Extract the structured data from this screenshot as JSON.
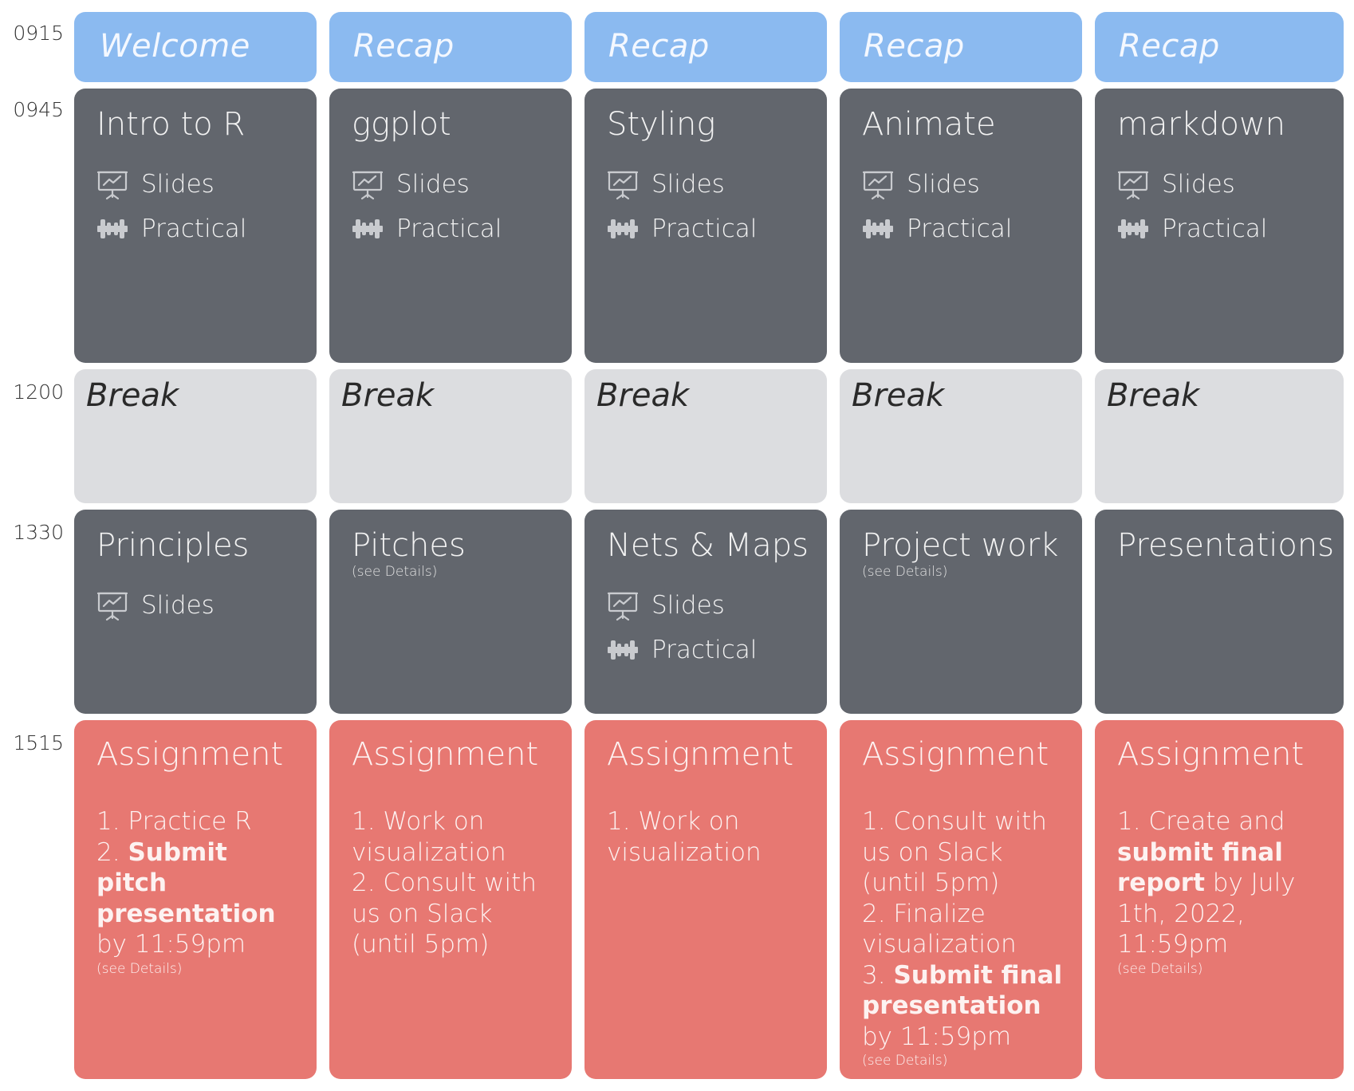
{
  "times": [
    "0915",
    "0945",
    "1200",
    "1330",
    "1515"
  ],
  "colors": {
    "recap": "#8bbaf0",
    "session": "#62666d",
    "break": "#dcdde0",
    "assignment": "#e77872"
  },
  "links": {
    "slides": "Slides",
    "practical": "Practical"
  },
  "days": [
    {
      "recap": "Welcome",
      "morning": {
        "title": "Intro to R"
      },
      "break": "Break",
      "afternoon": {
        "title": "Principles",
        "details": ""
      },
      "assignment": {
        "title": "Assignment",
        "line1": "1. Practice R",
        "line2_pre": "2. ",
        "line2_bold": "Submit pitch presentation",
        "line2_post": " by 11:59pm",
        "details": "(see Details)"
      }
    },
    {
      "recap": "Recap",
      "morning": {
        "title": "ggplot"
      },
      "break": "Break",
      "afternoon": {
        "title": "Pitches",
        "details": "(see Details)"
      },
      "assignment": {
        "title": "Assignment",
        "line1": "1. Work on visualization",
        "line2": "2. Consult with us on Slack (until 5pm)"
      }
    },
    {
      "recap": "Recap",
      "morning": {
        "title": "Styling"
      },
      "break": "Break",
      "afternoon": {
        "title": "Nets & Maps",
        "details": ""
      },
      "assignment": {
        "title": "Assignment",
        "line1": "1. Work on visualization"
      }
    },
    {
      "recap": "Recap",
      "morning": {
        "title": "Animate"
      },
      "break": "Break",
      "afternoon": {
        "title": "Project work",
        "details": "(see Details)"
      },
      "assignment": {
        "title": "Assignment",
        "line1": "1. Consult with us on Slack (until 5pm)",
        "line2": "2. Finalize visualization",
        "line3_pre": "3. ",
        "line3_bold": "Submit final presentation",
        "line3_post": " by 11:59pm",
        "details": "(see Details)"
      }
    },
    {
      "recap": "Recap",
      "morning": {
        "title": "markdown"
      },
      "break": "Break",
      "afternoon": {
        "title": "Presentations",
        "details": ""
      },
      "assignment": {
        "title": "Assignment",
        "line1_pre": "1. Create and ",
        "line1_bold": "submit final report",
        "line1_post": " by July 1th, 2022, 11:59pm",
        "details": "(see Details)"
      }
    }
  ]
}
